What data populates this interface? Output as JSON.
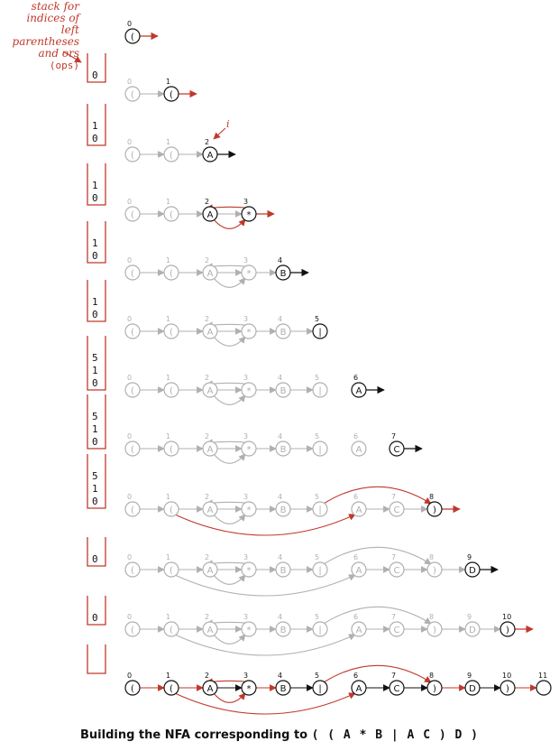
{
  "annotations": {
    "stack_note": [
      "stack for",
      "indices of",
      "left parentheses",
      "and ors"
    ],
    "stack_note_ops": "(ops)",
    "pointer": "i"
  },
  "caption": {
    "prefix": "Building the NFA corresponding to",
    "regex": "( ( A * B | A C ) D )"
  },
  "colors": {
    "accent": "#c0392b",
    "active": "#111111",
    "inactive": "#b0b0b0"
  },
  "states": [
    {
      "index": "0",
      "char": "("
    },
    {
      "index": "1",
      "char": "("
    },
    {
      "index": "2",
      "char": "A"
    },
    {
      "index": "3",
      "char": "*"
    },
    {
      "index": "4",
      "char": "B"
    },
    {
      "index": "5",
      "char": "|"
    },
    {
      "index": "6",
      "char": "A"
    },
    {
      "index": "7",
      "char": "C"
    },
    {
      "index": "8",
      "char": ")"
    },
    {
      "index": "9",
      "char": "D"
    },
    {
      "index": "10",
      "char": ")"
    },
    {
      "index": "11",
      "char": ""
    }
  ],
  "stacks": [
    [
      "0"
    ],
    [
      "1",
      "0"
    ],
    [
      "1",
      "0"
    ],
    [
      "1",
      "0"
    ],
    [
      "1",
      "0"
    ],
    [
      "5",
      "1",
      "0"
    ],
    [
      "5",
      "1",
      "0"
    ],
    [
      "5",
      "1",
      "0"
    ],
    [
      "0"
    ],
    [
      "0"
    ],
    []
  ]
}
